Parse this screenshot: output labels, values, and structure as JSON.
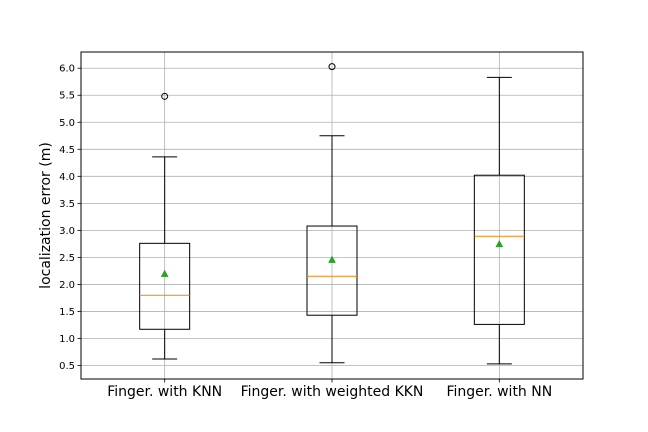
{
  "chart_data": {
    "type": "box",
    "ylabel": "localization error (m)",
    "ylim": [
      0.25,
      6.3
    ],
    "yticks": [
      "0.5",
      "1.0",
      "1.5",
      "2.0",
      "2.5",
      "3.0",
      "3.5",
      "4.0",
      "4.5",
      "5.0",
      "5.5",
      "6.0"
    ],
    "grid": true,
    "categories": [
      "Finger. with KNN",
      "Finger. with weighted KKN",
      "Finger. with NN"
    ],
    "series": [
      {
        "whisker_low": 0.62,
        "q1": 1.17,
        "median": 1.8,
        "q3": 2.76,
        "whisker_high": 4.36,
        "mean": 2.19,
        "outliers": [
          5.48
        ]
      },
      {
        "whisker_low": 0.55,
        "q1": 1.43,
        "median": 2.15,
        "q3": 3.08,
        "whisker_high": 4.75,
        "mean": 2.45,
        "outliers": [
          6.03
        ]
      },
      {
        "whisker_low": 0.53,
        "q1": 1.26,
        "median": 2.89,
        "q3": 4.02,
        "whisker_high": 5.83,
        "mean": 2.74,
        "outliers": []
      }
    ],
    "colors": {
      "box": "#000000",
      "median": "#ff7f0e",
      "mean": "#2ca02c",
      "grid": "#b0b0b0"
    }
  }
}
